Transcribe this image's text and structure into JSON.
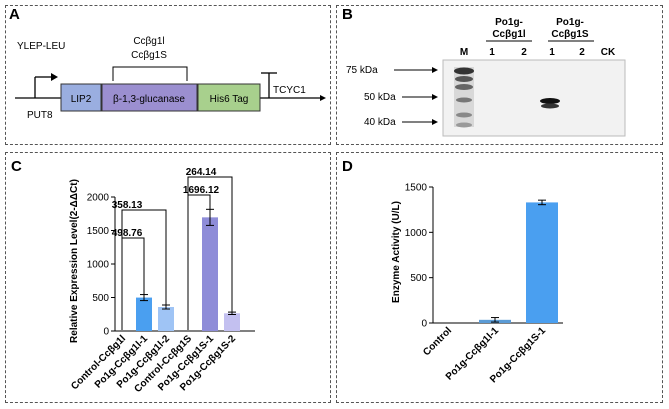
{
  "panelA": {
    "letter": "A",
    "vector": "YLEP-LEU",
    "promoter": "PUT8",
    "genes": [
      "LIP2",
      "β-1,3-glucanase",
      "His6 Tag"
    ],
    "insert_labels": [
      "Ccβg1l",
      "Ccβg1S"
    ],
    "terminator": "TCYC1",
    "colors": {
      "lip2": "#9aaee0",
      "glucanase": "#9b8fd0",
      "his": "#a8d08d"
    }
  },
  "panelB": {
    "letter": "B",
    "group_labels": [
      [
        "Po1g-",
        "Ccβg1l"
      ],
      [
        "Po1g-",
        "Ccβg1S"
      ]
    ],
    "lanes": [
      "M",
      "1",
      "2",
      "1",
      "2",
      "CK"
    ],
    "markers": [
      "75 kDa",
      "50 kDa",
      "40 kDa"
    ]
  },
  "panelC": {
    "letter": "C",
    "brackets": [
      "358.13",
      "498.76",
      "264.14",
      "1696.12"
    ]
  },
  "panelD": {
    "letter": "D"
  },
  "chart_data": [
    {
      "type": "bar",
      "ylabel": "Relative Expression Level(2-ΔΔCt)",
      "ylim": [
        0,
        2000
      ],
      "yticks": [
        0,
        500,
        1000,
        1500,
        2000
      ],
      "categories": [
        "Control-Ccβg1l",
        "Po1g-Ccβg1l-1",
        "Po1g-Ccβg1l-2",
        "Control-Ccβg1S",
        "Po1g-Ccβg1S-1",
        "Po1g-Ccβg1S-2"
      ],
      "values": [
        0,
        498.76,
        358.13,
        0,
        1696.12,
        264.14
      ],
      "errors": [
        0,
        45,
        30,
        0,
        120,
        18
      ],
      "colors": [
        "#5b9bd5",
        "#4a9ff0",
        "#9fc4f5",
        "#8e8cd8",
        "#8e8cd8",
        "#c3c0f0"
      ]
    },
    {
      "type": "bar",
      "ylabel": "Enzyme Activity (U/L)",
      "ylim": [
        0,
        1500
      ],
      "yticks": [
        0,
        500,
        1000,
        1500
      ],
      "categories": [
        "Control",
        "Po1g-Ccβg1l-1",
        "Po1g-Ccβg1S-1"
      ],
      "values": [
        0,
        35,
        1330
      ],
      "errors": [
        0,
        25,
        25
      ],
      "colors": [
        "#5b9bd5",
        "#5b9bd5",
        "#4a9ff0"
      ]
    }
  ]
}
